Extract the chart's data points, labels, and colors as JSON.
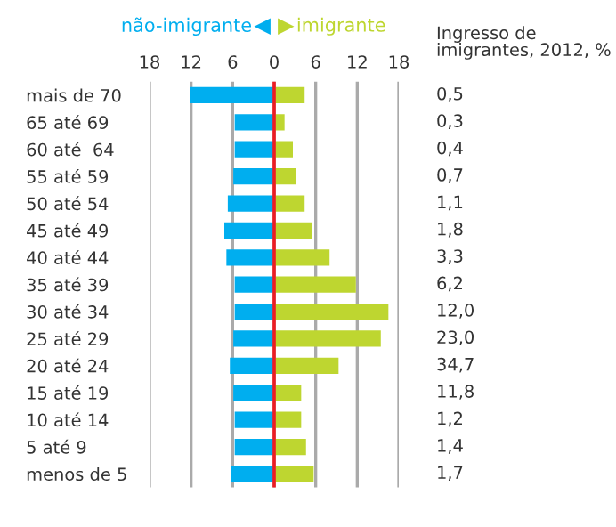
{
  "chart_data": [
    {
      "type": "bar",
      "orientation": "horizontal",
      "stacked": true,
      "categories": [
        "mais de 70",
        "65 até 69",
        "60 até  64",
        "55 até 59",
        "50 até 54",
        "45 até 49",
        "40 até 44",
        "35 até 39",
        "30 até 34",
        "25 até 29",
        "20 até 24",
        "15 até 19",
        "10 até 14",
        "5 até 9",
        "menos de 5"
      ],
      "series": [
        {
          "name": "não-imigrante",
          "color": "#00aeef",
          "values": [
            -12.1,
            -5.7,
            -5.7,
            -5.9,
            -6.7,
            -7.2,
            -6.9,
            -5.7,
            -5.7,
            -5.9,
            -6.4,
            -5.9,
            -5.7,
            -5.7,
            -6.2
          ]
        },
        {
          "name": "imigrante",
          "color": "#bed630",
          "values": [
            4.4,
            1.5,
            2.7,
            3.1,
            4.4,
            5.4,
            8.0,
            11.8,
            16.5,
            15.4,
            9.3,
            3.9,
            3.9,
            4.6,
            5.7
          ]
        }
      ],
      "xlim": [
        -18,
        18
      ],
      "xticks": [
        {
          "value": -18,
          "label": "18"
        },
        {
          "value": -12,
          "label": "12"
        },
        {
          "value": -6,
          "label": "6"
        },
        0,
        6,
        12,
        18
      ],
      "grid": "x",
      "legend": "top",
      "ref_lines": [
        {
          "axis": "x",
          "value": 0,
          "color": "#ed1c24"
        }
      ]
    },
    {
      "type": "other",
      "title": "Ingresso de\nimigrantes, 2012, %",
      "value_labels": [
        "0,5",
        "0,3",
        "0,4",
        "0,7",
        "1,1",
        "1,8",
        "3,3",
        "6,2",
        "12,0",
        "23,0",
        "34,7",
        "11,8",
        "1,2",
        "1,4",
        "1,7"
      ]
    }
  ]
}
